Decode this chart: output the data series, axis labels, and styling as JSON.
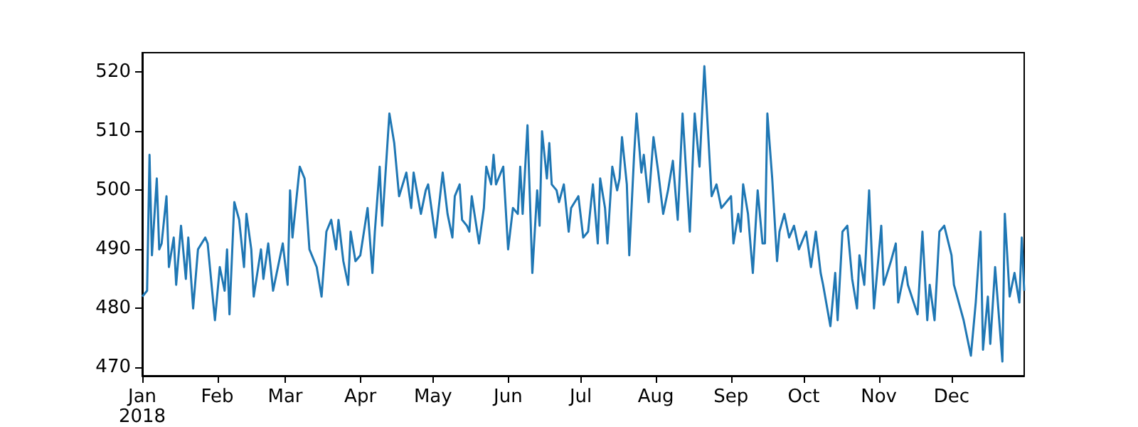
{
  "chart_data": {
    "type": "line",
    "x": [
      "2018-01-01",
      "2018-01-03",
      "2018-01-04",
      "2018-01-05",
      "2018-01-07",
      "2018-01-08",
      "2018-01-09",
      "2018-01-11",
      "2018-01-12",
      "2018-01-14",
      "2018-01-15",
      "2018-01-17",
      "2018-01-19",
      "2018-01-20",
      "2018-01-22",
      "2018-01-24",
      "2018-01-27",
      "2018-01-28",
      "2018-01-31",
      "2018-02-02",
      "2018-02-04",
      "2018-02-05",
      "2018-02-06",
      "2018-02-08",
      "2018-02-10",
      "2018-02-12",
      "2018-02-13",
      "2018-02-15",
      "2018-02-16",
      "2018-02-19",
      "2018-02-20",
      "2018-02-22",
      "2018-02-24",
      "2018-02-26",
      "2018-02-28",
      "2018-03-02",
      "2018-03-03",
      "2018-03-04",
      "2018-03-07",
      "2018-03-09",
      "2018-03-11",
      "2018-03-14",
      "2018-03-16",
      "2018-03-18",
      "2018-03-20",
      "2018-03-22",
      "2018-03-23",
      "2018-03-25",
      "2018-03-27",
      "2018-03-28",
      "2018-03-30",
      "2018-04-01",
      "2018-04-04",
      "2018-04-06",
      "2018-04-07",
      "2018-04-09",
      "2018-04-10",
      "2018-04-13",
      "2018-04-15",
      "2018-04-17",
      "2018-04-20",
      "2018-04-22",
      "2018-04-23",
      "2018-04-26",
      "2018-04-28",
      "2018-04-29",
      "2018-05-02",
      "2018-05-05",
      "2018-05-07",
      "2018-05-09",
      "2018-05-10",
      "2018-05-12",
      "2018-05-13",
      "2018-05-15",
      "2018-05-16",
      "2018-05-17",
      "2018-05-20",
      "2018-05-22",
      "2018-05-23",
      "2018-05-25",
      "2018-05-26",
      "2018-05-27",
      "2018-05-30",
      "2018-06-01",
      "2018-06-03",
      "2018-06-05",
      "2018-06-06",
      "2018-06-07",
      "2018-06-09",
      "2018-06-11",
      "2018-06-13",
      "2018-06-14",
      "2018-06-15",
      "2018-06-17",
      "2018-06-18",
      "2018-06-19",
      "2018-06-21",
      "2018-06-22",
      "2018-06-24",
      "2018-06-26",
      "2018-06-27",
      "2018-06-30",
      "2018-07-02",
      "2018-07-04",
      "2018-07-06",
      "2018-07-08",
      "2018-07-09",
      "2018-07-11",
      "2018-07-12",
      "2018-07-14",
      "2018-07-16",
      "2018-07-17",
      "2018-07-18",
      "2018-07-20",
      "2018-07-21",
      "2018-07-23",
      "2018-07-24",
      "2018-07-26",
      "2018-07-27",
      "2018-07-29",
      "2018-07-31",
      "2018-08-02",
      "2018-08-04",
      "2018-08-06",
      "2018-08-08",
      "2018-08-10",
      "2018-08-12",
      "2018-08-15",
      "2018-08-17",
      "2018-08-19",
      "2018-08-21",
      "2018-08-24",
      "2018-08-26",
      "2018-08-28",
      "2018-09-01",
      "2018-09-02",
      "2018-09-04",
      "2018-09-05",
      "2018-09-06",
      "2018-09-08",
      "2018-09-10",
      "2018-09-12",
      "2018-09-14",
      "2018-09-15",
      "2018-09-16",
      "2018-09-18",
      "2018-09-20",
      "2018-09-21",
      "2018-09-23",
      "2018-09-25",
      "2018-09-27",
      "2018-09-29",
      "2018-10-02",
      "2018-10-04",
      "2018-10-06",
      "2018-10-08",
      "2018-10-09",
      "2018-10-12",
      "2018-10-14",
      "2018-10-15",
      "2018-10-17",
      "2018-10-19",
      "2018-10-21",
      "2018-10-23",
      "2018-10-24",
      "2018-10-26",
      "2018-10-28",
      "2018-10-30",
      "2018-11-02",
      "2018-11-03",
      "2018-11-06",
      "2018-11-08",
      "2018-11-09",
      "2018-11-12",
      "2018-11-13",
      "2018-11-17",
      "2018-11-19",
      "2018-11-21",
      "2018-11-22",
      "2018-11-24",
      "2018-11-26",
      "2018-11-28",
      "2018-12-01",
      "2018-12-02",
      "2018-12-06",
      "2018-12-09",
      "2018-12-11",
      "2018-12-13",
      "2018-12-14",
      "2018-12-16",
      "2018-12-17",
      "2018-12-19",
      "2018-12-22",
      "2018-12-23",
      "2018-12-25",
      "2018-12-27",
      "2018-12-29",
      "2018-12-30",
      "2018-12-31"
    ],
    "series": [
      {
        "color": "#1f77b4",
        "values": [
          482,
          483,
          506,
          489,
          502,
          490,
          491,
          499,
          487,
          492,
          484,
          494,
          485,
          492,
          480,
          490,
          492,
          491,
          478,
          487,
          483,
          490,
          479,
          498,
          495,
          487,
          496,
          490,
          482,
          490,
          485,
          491,
          483,
          487,
          491,
          484,
          500,
          492,
          504,
          502,
          490,
          487,
          482,
          493,
          495,
          490,
          495,
          488,
          484,
          493,
          488,
          489,
          497,
          486,
          493,
          504,
          494,
          513,
          508,
          499,
          503,
          497,
          503,
          496,
          500,
          501,
          492,
          503,
          496,
          492,
          499,
          501,
          495,
          494,
          493,
          499,
          491,
          497,
          504,
          501,
          506,
          501,
          504,
          490,
          497,
          496,
          504,
          496,
          511,
          486,
          500,
          494,
          510,
          502,
          508,
          501,
          500,
          498,
          501,
          493,
          497,
          499,
          492,
          493,
          501,
          491,
          502,
          497,
          491,
          504,
          500,
          502,
          509,
          501,
          489,
          506,
          513,
          503,
          506,
          498,
          509,
          503,
          496,
          500,
          505,
          495,
          513,
          493,
          513,
          504,
          521,
          499,
          501,
          497,
          499,
          491,
          496,
          493,
          501,
          496,
          486,
          500,
          491,
          491,
          513,
          502,
          488,
          493,
          496,
          492,
          494,
          490,
          493,
          487,
          493,
          486,
          484,
          477,
          486,
          478,
          493,
          494,
          485,
          480,
          489,
          484,
          500,
          480,
          494,
          484,
          488,
          491,
          481,
          487,
          484,
          479,
          493,
          478,
          484,
          478,
          493,
          494,
          489,
          484,
          478,
          472,
          481,
          493,
          473,
          482,
          474,
          487,
          471,
          496,
          482,
          486,
          481,
          492,
          483
        ]
      }
    ],
    "xlim": [
      "2018-01-01",
      "2018-12-31"
    ],
    "xticks": [
      {
        "value": "2018-01-01",
        "label": "Jan\n2018"
      },
      {
        "value": "2018-02-01",
        "label": "Feb"
      },
      {
        "value": "2018-03-01",
        "label": "Mar"
      },
      {
        "value": "2018-04-01",
        "label": "Apr"
      },
      {
        "value": "2018-05-01",
        "label": "May"
      },
      {
        "value": "2018-06-01",
        "label": "Jun"
      },
      {
        "value": "2018-07-01",
        "label": "Jul"
      },
      {
        "value": "2018-08-01",
        "label": "Aug"
      },
      {
        "value": "2018-09-01",
        "label": "Sep"
      },
      {
        "value": "2018-10-01",
        "label": "Oct"
      },
      {
        "value": "2018-11-01",
        "label": "Nov"
      },
      {
        "value": "2018-12-01",
        "label": "Dec"
      }
    ],
    "ylim": [
      468.6,
      523.3
    ],
    "yticks": [
      470,
      480,
      490,
      500,
      510,
      520
    ]
  }
}
